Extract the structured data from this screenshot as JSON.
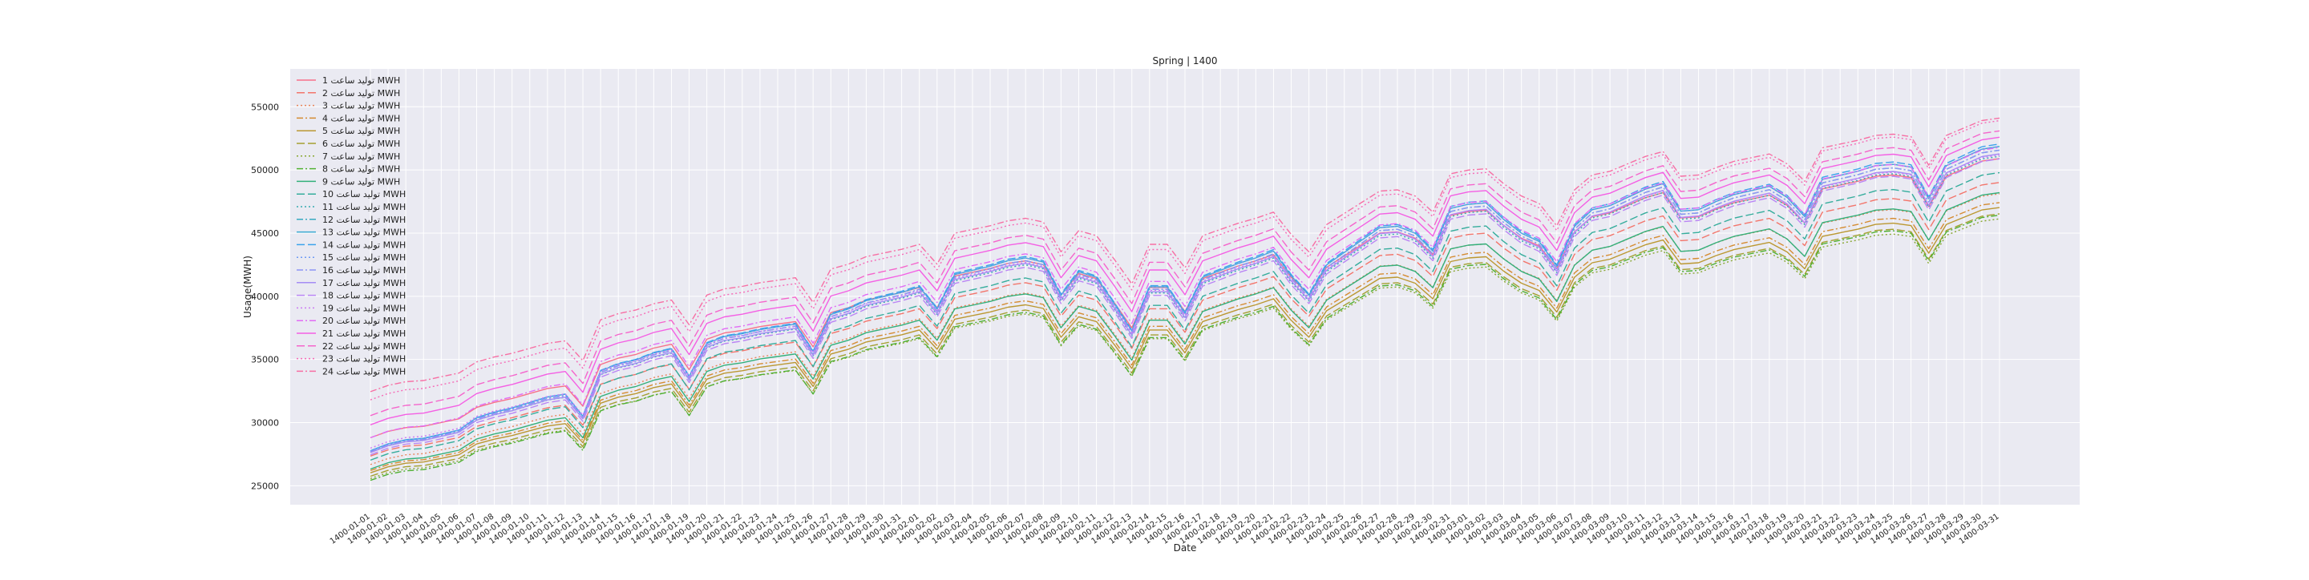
{
  "chart_data": {
    "type": "line",
    "title": "Spring | 1400",
    "xlabel": "Date",
    "ylabel": "Usage(MWH)",
    "ylim": [
      23500,
      58000
    ],
    "yticks": [
      25000,
      30000,
      35000,
      40000,
      45000,
      50000,
      55000
    ],
    "grid": true,
    "legend_position": "upper-left",
    "background": "#eaeaf2",
    "categories": [
      "1400-01-01",
      "1400-01-02",
      "1400-01-03",
      "1400-01-04",
      "1400-01-05",
      "1400-01-06",
      "1400-01-07",
      "1400-01-08",
      "1400-01-09",
      "1400-01-10",
      "1400-01-11",
      "1400-01-12",
      "1400-01-13",
      "1400-01-14",
      "1400-01-15",
      "1400-01-16",
      "1400-01-17",
      "1400-01-18",
      "1400-01-19",
      "1400-01-20",
      "1400-01-21",
      "1400-01-22",
      "1400-01-23",
      "1400-01-24",
      "1400-01-25",
      "1400-01-26",
      "1400-01-27",
      "1400-01-28",
      "1400-01-29",
      "1400-01-30",
      "1400-01-31",
      "1400-02-01",
      "1400-02-02",
      "1400-02-03",
      "1400-02-04",
      "1400-02-05",
      "1400-02-06",
      "1400-02-07",
      "1400-02-08",
      "1400-02-09",
      "1400-02-10",
      "1400-02-11",
      "1400-02-12",
      "1400-02-13",
      "1400-02-14",
      "1400-02-15",
      "1400-02-16",
      "1400-02-17",
      "1400-02-18",
      "1400-02-19",
      "1400-02-20",
      "1400-02-21",
      "1400-02-22",
      "1400-02-23",
      "1400-02-24",
      "1400-02-25",
      "1400-02-26",
      "1400-02-27",
      "1400-02-28",
      "1400-02-29",
      "1400-02-30",
      "1400-02-31",
      "1400-03-01",
      "1400-03-02",
      "1400-03-03",
      "1400-03-04",
      "1400-03-05",
      "1400-03-06",
      "1400-03-07",
      "1400-03-08",
      "1400-03-09",
      "1400-03-10",
      "1400-03-11",
      "1400-03-12",
      "1400-03-13",
      "1400-03-14",
      "1400-03-15",
      "1400-03-16",
      "1400-03-17",
      "1400-03-18",
      "1400-03-19",
      "1400-03-20",
      "1400-03-21",
      "1400-03-22",
      "1400-03-23",
      "1400-03-24",
      "1400-03-25",
      "1400-03-26",
      "1400-03-27",
      "1400-03-28",
      "1400-03-29",
      "1400-03-30",
      "1400-03-31"
    ],
    "base_series": [
      26000,
      26500,
      26800,
      26900,
      27200,
      27500,
      28400,
      28800,
      29100,
      29500,
      29900,
      30100,
      28500,
      31800,
      32300,
      32600,
      33100,
      33400,
      31400,
      33800,
      34300,
      34500,
      34800,
      35000,
      35200,
      33200,
      35900,
      36300,
      36900,
      37200,
      37500,
      37900,
      36300,
      38800,
      39100,
      39400,
      39800,
      40000,
      39700,
      37300,
      39000,
      38600,
      36700,
      34700,
      37900,
      37900,
      36000,
      38600,
      39100,
      39600,
      40000,
      40500,
      38700,
      37300,
      39500,
      40400,
      41300,
      42200,
      42300,
      41800,
      40500,
      43600,
      43900,
      44000,
      42800,
      41800,
      41200,
      39400,
      42300,
      43500,
      43800,
      44400,
      45000,
      45400,
      43400,
      43500,
      44100,
      44600,
      44900,
      45200,
      44400,
      43000,
      45700,
      46000,
      46300,
      46700,
      46800,
      46600,
      44300,
      46700,
      47300,
      47900,
      48100
    ],
    "series": [
      {
        "name": "ﺗﻮﻟﯿﺪ ﺳﺎﻋﺖ 1 MWH",
        "color": "#f77189",
        "dash": "",
        "offset": 2800,
        "amp": 1.0
      },
      {
        "name": "ﺗﻮﻟﯿﺪ ﺳﺎﻋﺖ 2 MWH",
        "color": "#f3756b",
        "dash": "10,4",
        "offset": 1100,
        "amp": 0.98
      },
      {
        "name": "ﺗﻮﻟﯿﺪ ﺳﺎﻋﺖ 3 MWH",
        "color": "#e8845a",
        "dash": "2,3",
        "offset": 300,
        "amp": 0.97
      },
      {
        "name": "ﺗﻮﻟﯿﺪ ﺳﺎﻋﺖ 4 MWH",
        "color": "#d58c32",
        "dash": "8,3,2,3",
        "offset": -300,
        "amp": 0.96
      },
      {
        "name": "ﺗﻮﻟﯿﺪ ﺳﺎﻋﺖ 5 MWH",
        "color": "#bb9832",
        "dash": "",
        "offset": -600,
        "amp": 0.95
      },
      {
        "name": "ﺗﻮﻟﯿﺪ ﺳﺎﻋﺖ 6 MWH",
        "color": "#a4a031",
        "dash": "10,4",
        "offset": -1000,
        "amp": 0.94
      },
      {
        "name": "ﺗﻮﻟﯿﺪ ﺳﺎﻋﺖ 7 MWH",
        "color": "#88a731",
        "dash": "2,3",
        "offset": -1300,
        "amp": 0.93
      },
      {
        "name": "ﺗﻮﻟﯿﺪ ﺳﺎﻋﺖ 8 MWH",
        "color": "#4fb032",
        "dash": "8,3,2,3",
        "offset": -1200,
        "amp": 0.95
      },
      {
        "name": "ﺗﻮﻟﯿﺪ ﺳﺎﻋﺖ 9 MWH",
        "color": "#33b07a",
        "dash": "",
        "offset": 200,
        "amp": 0.99
      },
      {
        "name": "ﺗﻮﻟﯿﺪ ﺳﺎﻋﺖ 10 MWH",
        "color": "#35ad9c",
        "dash": "10,4",
        "offset": 1400,
        "amp": 1.03
      },
      {
        "name": "ﺗﻮﻟﯿﺪ ﺳﺎﻋﺖ 11 MWH",
        "color": "#36abb0",
        "dash": "2,3",
        "offset": 2400,
        "amp": 1.06
      },
      {
        "name": "ﺗﻮﻟﯿﺪ ﺳﺎﻋﺖ 12 MWH",
        "color": "#37a9c0",
        "dash": "8,3,2,3",
        "offset": 2700,
        "amp": 1.08
      },
      {
        "name": "ﺗﻮﻟﯿﺪ ﺳﺎﻋﺖ 13 MWH",
        "color": "#38a7d0",
        "dash": "",
        "offset": 2900,
        "amp": 1.09
      },
      {
        "name": "ﺗﻮﻟﯿﺪ ﺳﺎﻋﺖ 14 MWH",
        "color": "#3ba3ec",
        "dash": "10,4",
        "offset": 3000,
        "amp": 1.1
      },
      {
        "name": "ﺗﻮﻟﯿﺪ ﺳﺎﻋﺖ 15 MWH",
        "color": "#6e9bf4",
        "dash": "2,3",
        "offset": 2900,
        "amp": 1.09
      },
      {
        "name": "ﺗﻮﻟﯿﺪ ﺳﺎﻋﺖ 16 MWH",
        "color": "#8d95f4",
        "dash": "8,3,2,3",
        "offset": 2700,
        "amp": 1.08
      },
      {
        "name": "ﺗﻮﻟﯿﺪ ﺳﺎﻋﺖ 17 MWH",
        "color": "#a48cf4",
        "dash": "",
        "offset": 2500,
        "amp": 1.07
      },
      {
        "name": "ﺗﻮﻟﯿﺪ ﺳﺎﻋﺖ 18 MWH",
        "color": "#b985f4",
        "dash": "10,4",
        "offset": 2200,
        "amp": 1.06
      },
      {
        "name": "ﺗﻮﻟﯿﺪ ﺳﺎﻋﺖ 19 MWH",
        "color": "#cc7af4",
        "dash": "2,3",
        "offset": 2600,
        "amp": 1.05
      },
      {
        "name": "ﺗﻮﻟﯿﺪ ﺳﺎﻋﺖ 20 MWH",
        "color": "#e16cf4",
        "dash": "8,3,2,3",
        "offset": 3300,
        "amp": 1.04
      },
      {
        "name": "ﺗﻮﻟﯿﺪ ﺳﺎﻋﺖ 21 MWH",
        "color": "#f45fe4",
        "dash": "",
        "offset": 4200,
        "amp": 1.03
      },
      {
        "name": "ﺗﻮﻟﯿﺪ ﺳﺎﻋﺖ 22 MWH",
        "color": "#f565cc",
        "dash": "10,4",
        "offset": 4800,
        "amp": 1.02
      },
      {
        "name": "ﺗﻮﻟﯿﺪ ﺳﺎﻋﺖ 23 MWH",
        "color": "#f66bb7",
        "dash": "2,3",
        "offset": 5800,
        "amp": 1.0
      },
      {
        "name": "ﺗﻮﻟﯿﺪ ﺳﺎﻋﺖ 24 MWH",
        "color": "#f76fa4",
        "dash": "8,3,2,3",
        "offset": 6200,
        "amp": 0.98
      }
    ]
  }
}
